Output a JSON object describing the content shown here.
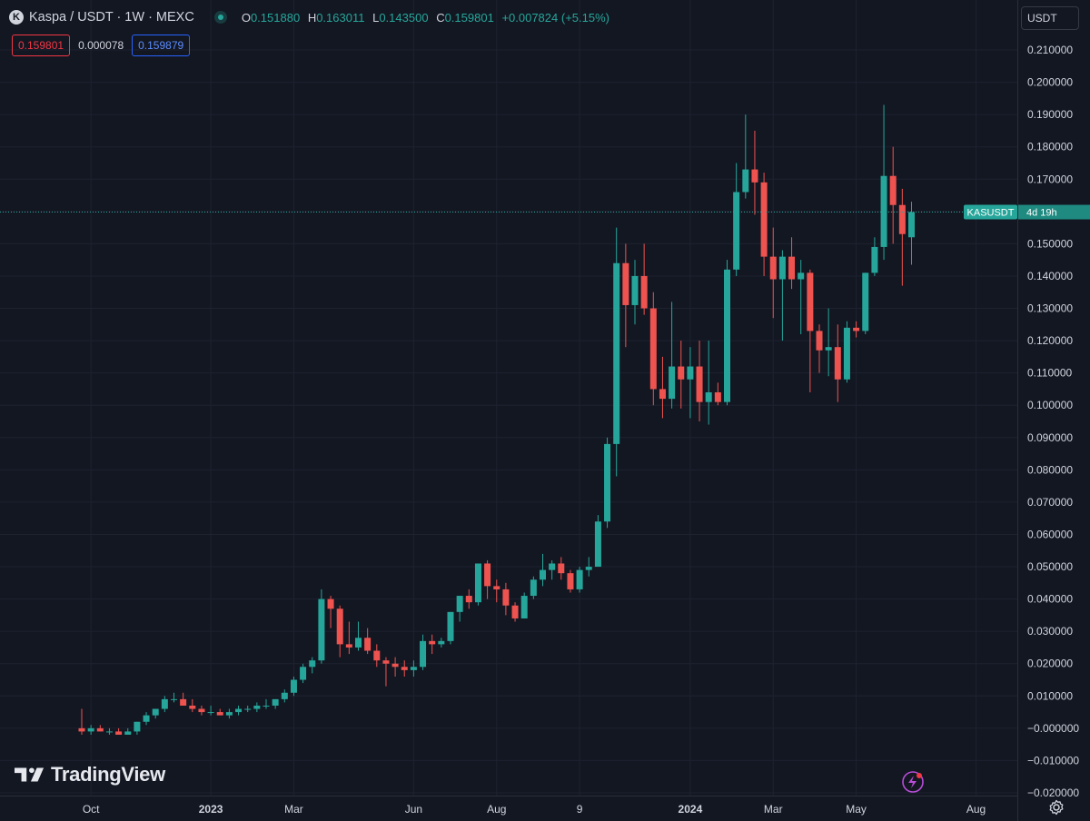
{
  "header": {
    "symbol_title": "Kaspa / USDT · 1W · MEXC",
    "ohlc": {
      "o_label": "O",
      "o_value": "0.151880",
      "h_label": "H",
      "h_value": "0.163011",
      "l_label": "L",
      "l_value": "0.143500",
      "c_label": "C",
      "c_value": "0.159801",
      "change": "+0.007824 (+5.15%)"
    }
  },
  "quote": {
    "bid": "0.159801",
    "spread": "0.000078",
    "ask": "0.159879"
  },
  "currency_button": "USDT",
  "brand": "TradingView",
  "price_tag": {
    "symbol": "KASUSDT",
    "countdown": "4d 19h",
    "last_price": 0.159801
  },
  "colors": {
    "up": "#26a69a",
    "down": "#ef5350",
    "background": "#131722",
    "grid": "#1e2230"
  },
  "icons": [
    "kaspa-logo-icon",
    "live-status-icon",
    "tradingview-logo-icon",
    "flash-icon",
    "gear-icon"
  ],
  "chart_data": {
    "type": "candlestick",
    "ylim": [
      -0.02,
      0.215
    ],
    "y_ticks": [
      "0.210000",
      "0.200000",
      "0.190000",
      "0.180000",
      "0.170000",
      "0.160000",
      "0.150000",
      "0.140000",
      "0.130000",
      "0.120000",
      "0.110000",
      "0.100000",
      "0.090000",
      "0.080000",
      "0.070000",
      "0.060000",
      "0.050000",
      "0.040000",
      "0.030000",
      "0.020000",
      "0.010000",
      "−0.000000",
      "−0.010000",
      "−0.020000"
    ],
    "y_tick_values": [
      0.21,
      0.2,
      0.19,
      0.18,
      0.17,
      0.16,
      0.15,
      0.14,
      0.13,
      0.12,
      0.11,
      0.1,
      0.09,
      0.08,
      0.07,
      0.06,
      0.05,
      0.04,
      0.03,
      0.02,
      0.01,
      0.0,
      -0.01,
      -0.02
    ],
    "x_ticks": [
      {
        "label": "Oct",
        "index": 1,
        "bold": false
      },
      {
        "label": "2023",
        "index": 14,
        "bold": true
      },
      {
        "label": "Mar",
        "index": 23,
        "bold": false
      },
      {
        "label": "Jun",
        "index": 36,
        "bold": false
      },
      {
        "label": "Aug",
        "index": 45,
        "bold": false
      },
      {
        "label": "9",
        "index": 54,
        "bold": false
      },
      {
        "label": "2024",
        "index": 66,
        "bold": true
      },
      {
        "label": "Mar",
        "index": 75,
        "bold": false
      },
      {
        "label": "May",
        "index": 84,
        "bold": false
      },
      {
        "label": "Aug",
        "index": 97,
        "bold": false
      }
    ],
    "candles": [
      [
        0.0,
        0.006,
        -0.002,
        -0.001
      ],
      [
        -0.001,
        0.001,
        -0.002,
        0.0
      ],
      [
        0.0,
        0.001,
        -0.001,
        -0.001
      ],
      [
        -0.001,
        0.0,
        -0.002,
        -0.001
      ],
      [
        -0.001,
        0.0,
        -0.002,
        -0.002
      ],
      [
        -0.002,
        0.0,
        -0.002,
        -0.001
      ],
      [
        -0.001,
        0.002,
        -0.002,
        0.002
      ],
      [
        0.002,
        0.005,
        0.001,
        0.004
      ],
      [
        0.004,
        0.006,
        0.003,
        0.006
      ],
      [
        0.006,
        0.01,
        0.005,
        0.009
      ],
      [
        0.009,
        0.011,
        0.008,
        0.009
      ],
      [
        0.009,
        0.011,
        0.007,
        0.007
      ],
      [
        0.007,
        0.009,
        0.005,
        0.006
      ],
      [
        0.006,
        0.007,
        0.004,
        0.005
      ],
      [
        0.005,
        0.007,
        0.004,
        0.005
      ],
      [
        0.005,
        0.006,
        0.004,
        0.004
      ],
      [
        0.004,
        0.006,
        0.003,
        0.005
      ],
      [
        0.005,
        0.007,
        0.004,
        0.006
      ],
      [
        0.006,
        0.007,
        0.005,
        0.006
      ],
      [
        0.006,
        0.008,
        0.005,
        0.007
      ],
      [
        0.007,
        0.009,
        0.006,
        0.007
      ],
      [
        0.007,
        0.009,
        0.006,
        0.009
      ],
      [
        0.009,
        0.012,
        0.008,
        0.011
      ],
      [
        0.011,
        0.016,
        0.01,
        0.015
      ],
      [
        0.015,
        0.02,
        0.014,
        0.019
      ],
      [
        0.019,
        0.022,
        0.017,
        0.021
      ],
      [
        0.021,
        0.043,
        0.02,
        0.04
      ],
      [
        0.04,
        0.041,
        0.031,
        0.037
      ],
      [
        0.037,
        0.038,
        0.022,
        0.026
      ],
      [
        0.026,
        0.033,
        0.023,
        0.025
      ],
      [
        0.025,
        0.033,
        0.024,
        0.028
      ],
      [
        0.028,
        0.031,
        0.023,
        0.024
      ],
      [
        0.024,
        0.026,
        0.019,
        0.021
      ],
      [
        0.021,
        0.022,
        0.013,
        0.02
      ],
      [
        0.02,
        0.022,
        0.016,
        0.019
      ],
      [
        0.019,
        0.021,
        0.016,
        0.018
      ],
      [
        0.018,
        0.021,
        0.016,
        0.019
      ],
      [
        0.019,
        0.029,
        0.018,
        0.027
      ],
      [
        0.027,
        0.029,
        0.023,
        0.026
      ],
      [
        0.026,
        0.028,
        0.025,
        0.027
      ],
      [
        0.027,
        0.036,
        0.026,
        0.036
      ],
      [
        0.036,
        0.041,
        0.033,
        0.041
      ],
      [
        0.041,
        0.043,
        0.037,
        0.039
      ],
      [
        0.039,
        0.051,
        0.038,
        0.051
      ],
      [
        0.051,
        0.052,
        0.04,
        0.044
      ],
      [
        0.044,
        0.046,
        0.039,
        0.043
      ],
      [
        0.043,
        0.045,
        0.035,
        0.038
      ],
      [
        0.038,
        0.039,
        0.033,
        0.034
      ],
      [
        0.034,
        0.042,
        0.034,
        0.041
      ],
      [
        0.041,
        0.047,
        0.04,
        0.046
      ],
      [
        0.046,
        0.054,
        0.044,
        0.049
      ],
      [
        0.049,
        0.052,
        0.046,
        0.051
      ],
      [
        0.051,
        0.053,
        0.046,
        0.048
      ],
      [
        0.048,
        0.049,
        0.042,
        0.043
      ],
      [
        0.043,
        0.05,
        0.042,
        0.049
      ],
      [
        0.049,
        0.053,
        0.047,
        0.05
      ],
      [
        0.05,
        0.066,
        0.05,
        0.064
      ],
      [
        0.064,
        0.09,
        0.062,
        0.088
      ],
      [
        0.088,
        0.155,
        0.078,
        0.144
      ],
      [
        0.144,
        0.15,
        0.118,
        0.131
      ],
      [
        0.131,
        0.145,
        0.125,
        0.14
      ],
      [
        0.14,
        0.15,
        0.128,
        0.13
      ],
      [
        0.13,
        0.135,
        0.1,
        0.105
      ],
      [
        0.105,
        0.115,
        0.096,
        0.102
      ],
      [
        0.102,
        0.132,
        0.099,
        0.112
      ],
      [
        0.112,
        0.12,
        0.099,
        0.108
      ],
      [
        0.108,
        0.118,
        0.096,
        0.112
      ],
      [
        0.112,
        0.12,
        0.095,
        0.101
      ],
      [
        0.101,
        0.12,
        0.094,
        0.104
      ],
      [
        0.104,
        0.107,
        0.1,
        0.101
      ],
      [
        0.101,
        0.145,
        0.1,
        0.142
      ],
      [
        0.142,
        0.175,
        0.14,
        0.166
      ],
      [
        0.166,
        0.19,
        0.164,
        0.173
      ],
      [
        0.173,
        0.185,
        0.159,
        0.169
      ],
      [
        0.169,
        0.172,
        0.14,
        0.146
      ],
      [
        0.146,
        0.155,
        0.127,
        0.139
      ],
      [
        0.139,
        0.148,
        0.12,
        0.146
      ],
      [
        0.146,
        0.152,
        0.136,
        0.139
      ],
      [
        0.139,
        0.145,
        0.122,
        0.141
      ],
      [
        0.141,
        0.142,
        0.104,
        0.123
      ],
      [
        0.123,
        0.125,
        0.11,
        0.117
      ],
      [
        0.117,
        0.13,
        0.109,
        0.118
      ],
      [
        0.118,
        0.125,
        0.101,
        0.108
      ],
      [
        0.108,
        0.126,
        0.107,
        0.124
      ],
      [
        0.124,
        0.126,
        0.121,
        0.123
      ],
      [
        0.123,
        0.141,
        0.122,
        0.141
      ],
      [
        0.141,
        0.152,
        0.14,
        0.149
      ],
      [
        0.149,
        0.193,
        0.145,
        0.171
      ],
      [
        0.171,
        0.18,
        0.15,
        0.162
      ],
      [
        0.162,
        0.167,
        0.137,
        0.153
      ],
      [
        0.152,
        0.163,
        0.1435,
        0.1598
      ]
    ]
  }
}
